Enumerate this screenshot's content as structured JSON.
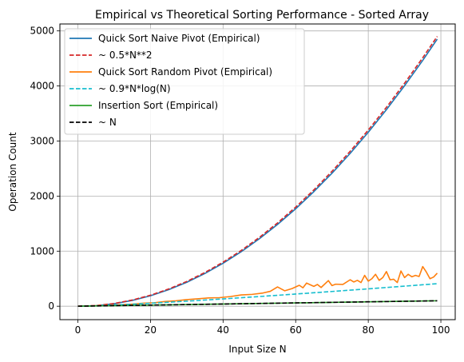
{
  "chart_data": {
    "type": "line",
    "title": "Empirical vs Theoretical Sorting Performance - Sorted Array",
    "xlabel": "Input Size N",
    "ylabel": "Operation Count",
    "xlim": [
      -4.95,
      103.95
    ],
    "ylim": [
      -244,
      5126
    ],
    "xticks": [
      0,
      20,
      40,
      60,
      80,
      100
    ],
    "yticks": [
      0,
      1000,
      2000,
      3000,
      4000,
      5000
    ],
    "xtick_labels": [
      "0",
      "20",
      "40",
      "60",
      "80",
      "100"
    ],
    "ytick_labels": [
      "0",
      "1000",
      "2000",
      "3000",
      "4000",
      "5000"
    ],
    "grid": true,
    "legend_position": "top-left",
    "series": [
      {
        "name": "Quick Sort Naive Pivot (Empirical)",
        "color": "#1f77b4",
        "dash": "solid",
        "x": [
          0,
          5,
          10,
          15,
          20,
          25,
          30,
          35,
          40,
          45,
          50,
          55,
          60,
          65,
          70,
          75,
          80,
          85,
          90,
          95,
          99
        ],
        "y": [
          0,
          10,
          45,
          105,
          190,
          300,
          435,
          595,
          780,
          990,
          1225,
          1485,
          1770,
          2080,
          2415,
          2775,
          3160,
          3570,
          4005,
          4465,
          4851
        ]
      },
      {
        "name": "~ 0.5*N**2",
        "color": "#d62728",
        "dash": "dashed",
        "x": [
          0,
          5,
          10,
          15,
          20,
          25,
          30,
          35,
          40,
          45,
          50,
          55,
          60,
          65,
          70,
          75,
          80,
          85,
          90,
          95,
          99
        ],
        "y": [
          0,
          12.5,
          50,
          112.5,
          200,
          312.5,
          450,
          612.5,
          800,
          1012.5,
          1250,
          1512.5,
          1800,
          2112.5,
          2450,
          2812.5,
          3200,
          3612.5,
          4050,
          4512.5,
          4900.5
        ]
      },
      {
        "name": "Quick Sort Random Pivot (Empirical)",
        "color": "#ff7f0e",
        "dash": "solid",
        "x": [
          0,
          3,
          6,
          9,
          12,
          15,
          18,
          21,
          24,
          27,
          30,
          33,
          36,
          39,
          42,
          45,
          48,
          51,
          53,
          55,
          57,
          59,
          61,
          62,
          63,
          65,
          66,
          67,
          69,
          70,
          71,
          73,
          75,
          76,
          77,
          78,
          79,
          80,
          81,
          82,
          83,
          84,
          85,
          86,
          87,
          88,
          89,
          90,
          91,
          92,
          93,
          94,
          95,
          96,
          97,
          98,
          99
        ],
        "y": [
          0,
          4,
          11,
          17,
          28,
          38,
          55,
          62,
          85,
          98,
          120,
          135,
          150,
          155,
          175,
          205,
          215,
          240,
          270,
          350,
          280,
          320,
          380,
          335,
          420,
          360,
          395,
          340,
          465,
          375,
          400,
          395,
          480,
          440,
          470,
          430,
          560,
          455,
          500,
          580,
          470,
          520,
          630,
          480,
          490,
          430,
          640,
          520,
          580,
          535,
          560,
          540,
          720,
          620,
          500,
          530,
          600
        ]
      },
      {
        "name": "~ 0.9*N*log(N)",
        "color": "#17becf",
        "dash": "dashed",
        "x": [
          1,
          5,
          10,
          15,
          20,
          25,
          30,
          35,
          40,
          45,
          50,
          55,
          60,
          65,
          70,
          75,
          80,
          85,
          90,
          95,
          99
        ],
        "y": [
          0,
          7.2,
          20.7,
          36.6,
          53.9,
          72.4,
          91.8,
          112,
          132.8,
          154.2,
          176,
          198.4,
          221.1,
          244.2,
          267.7,
          291.4,
          315.5,
          339.9,
          364.5,
          389.3,
          409.4
        ]
      },
      {
        "name": "Insertion Sort (Empirical)",
        "color": "#2ca02c",
        "dash": "solid",
        "x": [
          0,
          99
        ],
        "y": [
          0,
          99
        ]
      },
      {
        "name": "~ N",
        "color": "#000000",
        "dash": "dashed",
        "x": [
          0,
          99
        ],
        "y": [
          0,
          99
        ]
      }
    ]
  }
}
